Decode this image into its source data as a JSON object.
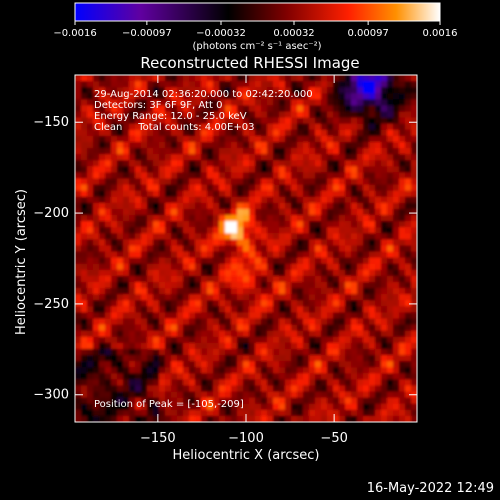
{
  "chart_data": {
    "type": "heatmap",
    "title": "Reconstructed RHESSI Image",
    "xlabel": "Heliocentric X (arcsec)",
    "ylabel": "Heliocentric Y (arcsec)",
    "xlim": [
      -197,
      -3
    ],
    "ylim": [
      -315,
      -124
    ],
    "x_ticks": [
      -150,
      -100,
      -50
    ],
    "x_tick_labels": [
      "−150",
      "−100",
      "−50"
    ],
    "y_ticks": [
      -150,
      -200,
      -250,
      -300
    ],
    "y_tick_labels": [
      "−150",
      "−200",
      "−250",
      "−300"
    ],
    "colorbar": {
      "range": [
        -0.0016,
        0.0016
      ],
      "ticks": [
        -0.0016,
        -0.00097,
        -0.00032,
        0.00032,
        0.00097,
        0.0016
      ],
      "tick_labels": [
        "−0.0016",
        "−0.00097",
        "−0.00032",
        "0.00032",
        "0.00097",
        "0.0016"
      ],
      "unit_label": "(photons cm⁻² s⁻¹ asec⁻²)",
      "colormap": [
        "#0000ff",
        "#6000a0",
        "#000000",
        "#800000",
        "#ff2000",
        "#ff9000",
        "#ffffff"
      ]
    },
    "peak": [
      -105,
      -209
    ],
    "annotations": [
      "29-Aug-2014 02:36:20.000 to 02:42:20.000",
      "Detectors: 3F 6F 9F, Att 0",
      "Energy Range: 12.0 - 25.0 keV",
      "Clean     Total counts: 4.00E+03"
    ],
    "peak_label": "Position of Peak = [-105,-209]",
    "grid": false
  },
  "footer": {
    "timestamp": "16-May-2022 12:49"
  }
}
